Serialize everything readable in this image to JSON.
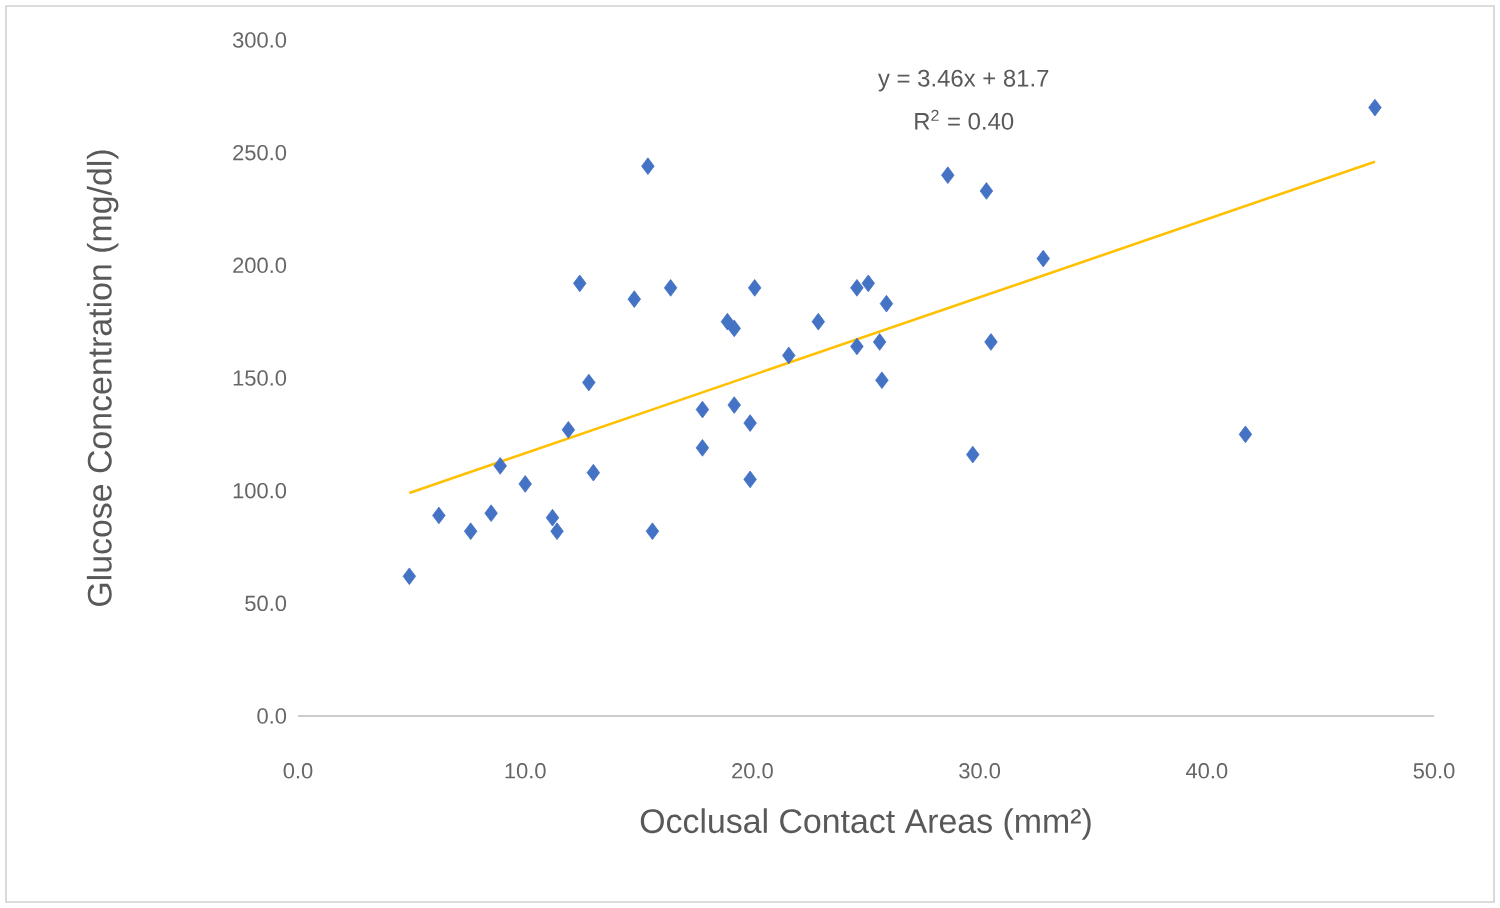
{
  "chart_data": {
    "type": "scatter",
    "xlabel": "Occlusal Contact Areas (mm²)",
    "ylabel": "Glucose Concentration (mg/dl)",
    "xlim": [
      0,
      50
    ],
    "ylim": [
      0,
      300
    ],
    "xticks": [
      {
        "value": 0,
        "label": "0.0"
      },
      {
        "value": 10,
        "label": "10.0"
      },
      {
        "value": 20,
        "label": "20.0"
      },
      {
        "value": 30,
        "label": "30.0"
      },
      {
        "value": 40,
        "label": "40.0"
      },
      {
        "value": 50,
        "label": "50.0"
      }
    ],
    "yticks": [
      {
        "value": 0,
        "label": "0.0"
      },
      {
        "value": 50,
        "label": "50.0"
      },
      {
        "value": 100,
        "label": "100.0"
      },
      {
        "value": 150,
        "label": "150.0"
      },
      {
        "value": 200,
        "label": "200.0"
      },
      {
        "value": 250,
        "label": "250.0"
      },
      {
        "value": 300,
        "label": "300.0"
      }
    ],
    "grid": false,
    "series": [
      {
        "color": "#4472c4",
        "marker": "diamond",
        "x": [
          4.9,
          6.2,
          7.6,
          8.5,
          8.9,
          10.0,
          11.2,
          11.4,
          11.9,
          12.8,
          13.0,
          15.6,
          17.8,
          17.8,
          19.2,
          19.9,
          19.9,
          15.4,
          12.4,
          14.8,
          16.4,
          20.1,
          18.9,
          19.2,
          22.9,
          21.6,
          24.6,
          25.1,
          25.9,
          24.6,
          25.6,
          25.7,
          28.6,
          30.3,
          30.5,
          29.7,
          32.8,
          47.4,
          41.7
        ],
        "values": [
          62,
          89,
          82,
          90,
          111,
          103,
          88,
          82,
          127,
          148,
          108,
          82,
          136,
          119,
          138,
          130,
          105,
          244,
          192,
          185,
          190,
          190,
          175,
          172,
          175,
          160,
          190,
          192,
          183,
          164,
          166,
          149,
          240,
          233,
          166,
          116,
          203,
          270,
          125
        ]
      },
      {
        "type": "line",
        "color": "#ffc000",
        "marker": "none",
        "x": [
          4.9,
          47.4
        ],
        "values": [
          99,
          246
        ]
      }
    ],
    "annotations": [
      "y = 3.46x + 81.7",
      "R$^{2}$ = 0.40"
    ]
  }
}
